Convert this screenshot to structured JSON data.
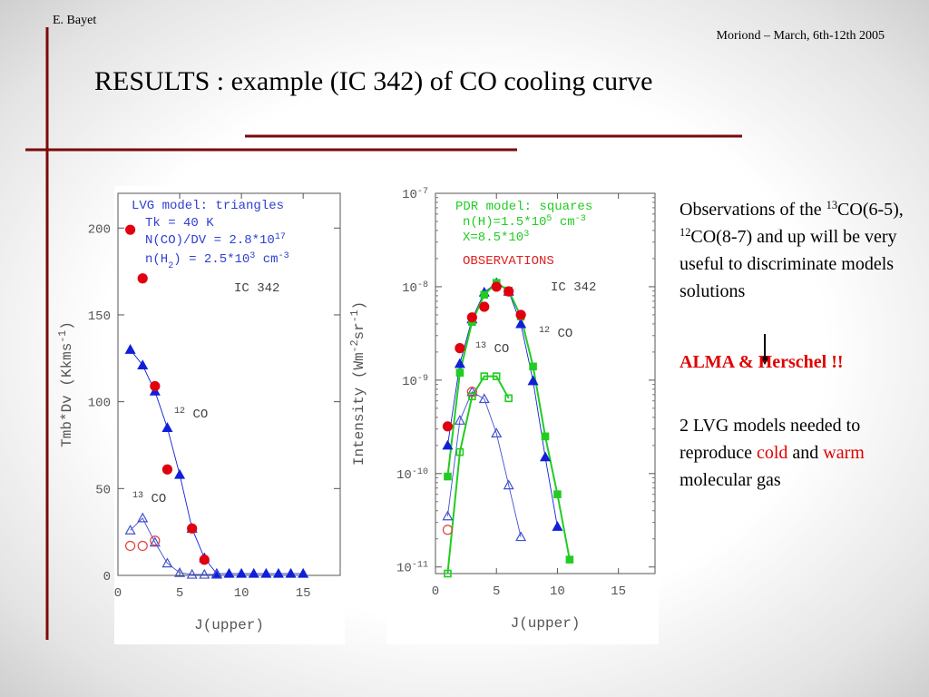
{
  "header": {
    "author": "E. Bayet",
    "event": "Moriond – March, 6th-12th  2005",
    "title": "RESULTS : example (IC 342) of CO cooling curve"
  },
  "notes": [
    [
      {
        "text": "Observations of the "
      },
      {
        "sup": "13"
      },
      {
        "text": "CO(6-5), "
      },
      {
        "sup": "12"
      },
      {
        "text": "CO(8-7) and up will be very useful to discriminate models solutions"
      }
    ],
    [
      {
        "text": "ALMA & Herschel !!",
        "color": "#e00000",
        "bold": true
      }
    ],
    [
      {
        "text": "2 LVG models needed to reproduce "
      },
      {
        "text": "cold",
        "color": "#e00000"
      },
      {
        "text": " and "
      },
      {
        "text": "warm",
        "color": "#e00000"
      },
      {
        "text": " molecular gas"
      }
    ]
  ],
  "chart_data": [
    {
      "type": "line",
      "x_label": "J(upper)",
      "y_label": [
        {
          "text": "Tmb*Dv (Kkms"
        },
        {
          "sup": "-1"
        },
        {
          "text": ")"
        }
      ],
      "xlim": [
        0,
        18
      ],
      "xticks": [
        0,
        5,
        10,
        15
      ],
      "ylim": [
        0,
        220
      ],
      "yticks": [
        0,
        50,
        100,
        150,
        200
      ],
      "yscale": "linear",
      "annotations": [
        {
          "parts": [
            {
              "text": "LVG model: triangles"
            }
          ],
          "color": "#3040d0"
        },
        {
          "parts": [
            {
              "text": "Tk = 40 K"
            }
          ],
          "color": "#3040d0"
        },
        {
          "parts": [
            {
              "text": "N(CO)/DV = 2.8*10"
            },
            {
              "sup": "17"
            }
          ],
          "color": "#3040d0"
        },
        {
          "parts": [
            {
              "text": "n(H"
            },
            {
              "sub": "2"
            },
            {
              "text": ") = 2.5*10"
            },
            {
              "sup": "3"
            },
            {
              "text": " cm"
            },
            {
              "sup": "-3"
            }
          ],
          "color": "#3040d0"
        },
        {
          "parts": [
            {
              "text": "IC 342"
            }
          ],
          "color": "#444444"
        },
        {
          "parts": [
            {
              "sup": "12"
            },
            {
              "text": " CO"
            }
          ],
          "color": "#444444"
        },
        {
          "parts": [
            {
              "sup": "13"
            },
            {
              "text": " CO"
            }
          ],
          "color": "#444444"
        }
      ],
      "series": [
        {
          "marker": "triangle-filled",
          "color": "#1020d8",
          "line": true,
          "x": [
            1,
            2,
            3,
            4,
            5,
            6,
            7,
            8,
            9,
            10,
            11,
            12,
            13,
            14,
            15
          ],
          "values": [
            130,
            121,
            106,
            85,
            58,
            27,
            10,
            1,
            1,
            1,
            1,
            1,
            1,
            1,
            1
          ]
        },
        {
          "marker": "triangle-open",
          "color": "#4050d0",
          "line": true,
          "x": [
            1,
            2,
            3,
            4,
            5,
            6,
            7,
            8
          ],
          "values": [
            26,
            33,
            19,
            7,
            1.5,
            0.5,
            0.5,
            0.5
          ]
        },
        {
          "marker": "circle-filled",
          "color": "#e00010",
          "line": false,
          "x": [
            1,
            2,
            3,
            4,
            6,
            7
          ],
          "values": [
            199,
            171,
            109,
            61,
            27,
            9
          ]
        },
        {
          "marker": "circle-open",
          "color": "#e04040",
          "line": false,
          "x": [
            1,
            2,
            3
          ],
          "values": [
            17,
            17,
            20
          ]
        }
      ]
    },
    {
      "type": "line",
      "x_label": "J(upper)",
      "y_label": [
        {
          "text": "Intensity (Wm"
        },
        {
          "sup": "-2"
        },
        {
          "text": "sr"
        },
        {
          "sup": "-1"
        },
        {
          "text": ")"
        }
      ],
      "xlim": [
        0,
        18
      ],
      "xticks": [
        0,
        5,
        10,
        15
      ],
      "ylim": [
        8.5e-12,
        1e-07
      ],
      "yscale": "log",
      "yticks": [
        {
          "value": 1e-07,
          "label": "10",
          "sup": "-7"
        },
        {
          "value": 1e-08,
          "label": "10",
          "sup": "-8"
        },
        {
          "value": 1e-09,
          "label": "10",
          "sup": "-9"
        },
        {
          "value": 1e-10,
          "label": "10",
          "sup": "-10"
        },
        {
          "value": 1e-11,
          "label": "10",
          "sup": "-11"
        }
      ],
      "annotations": [
        {
          "parts": [
            {
              "text": "PDR model: squares"
            }
          ],
          "color": "#22cc22"
        },
        {
          "parts": [
            {
              "text": "n(H)=1.5*10"
            },
            {
              "sup": "5"
            },
            {
              "text": " cm"
            },
            {
              "sup": "-3"
            }
          ],
          "color": "#22cc22"
        },
        {
          "parts": [
            {
              "text": "X=8.5*10"
            },
            {
              "sup": "3"
            }
          ],
          "color": "#22cc22"
        },
        {
          "parts": [
            {
              "text": "OBSERVATIONS"
            }
          ],
          "color": "#e02020"
        },
        {
          "parts": [
            {
              "text": "IC 342"
            }
          ],
          "color": "#444444"
        },
        {
          "parts": [
            {
              "sup": "13"
            },
            {
              "text": " CO"
            }
          ],
          "color": "#444444"
        },
        {
          "parts": [
            {
              "sup": "12"
            },
            {
              "text": " CO"
            }
          ],
          "color": "#444444"
        }
      ],
      "series": [
        {
          "marker": "triangle-filled",
          "color": "#1020d8",
          "line": true,
          "x": [
            1,
            2,
            3,
            4,
            5,
            6,
            7,
            8,
            9,
            10
          ],
          "values": [
            2e-10,
            1.5e-09,
            4.5e-09,
            8.7e-09,
            1.1e-08,
            8.9e-09,
            4e-09,
            9.8e-10,
            1.5e-10,
            2.7e-11
          ]
        },
        {
          "marker": "triangle-open",
          "color": "#4050d0",
          "line": true,
          "x": [
            1,
            2,
            3,
            4,
            5,
            6,
            7
          ],
          "values": [
            3.5e-11,
            3.7e-10,
            7.5e-10,
            6.3e-10,
            2.7e-10,
            7.5e-11,
            2.1e-11
          ]
        },
        {
          "marker": "square-filled",
          "color": "#22cc22",
          "line": true,
          "x": [
            1,
            2,
            3,
            4,
            5,
            6,
            7,
            8,
            9,
            10,
            11
          ],
          "values": [
            9.3e-11,
            1.2e-09,
            4.2e-09,
            8.2e-09,
            1.1e-08,
            9.1e-09,
            4.8e-09,
            1.4e-09,
            2.5e-10,
            6e-11,
            1.2e-11
          ]
        },
        {
          "marker": "square-open",
          "color": "#22cc22",
          "line": true,
          "x": [
            1,
            2,
            3,
            4,
            5,
            6
          ],
          "values": [
            8.5e-12,
            1.7e-10,
            6.7e-10,
            1.1e-09,
            1.1e-09,
            6.4e-10
          ]
        },
        {
          "marker": "circle-filled",
          "color": "#e00010",
          "line": false,
          "x": [
            1,
            2,
            3,
            4,
            5,
            6,
            7
          ],
          "values": [
            3.2e-10,
            2.2e-09,
            4.7e-09,
            6.1e-09,
            1e-08,
            8.9e-09,
            5e-09
          ]
        },
        {
          "marker": "circle-open",
          "color": "#e04040",
          "line": false,
          "x": [
            1,
            3
          ],
          "values": [
            2.5e-11,
            7.5e-10
          ]
        }
      ]
    }
  ]
}
